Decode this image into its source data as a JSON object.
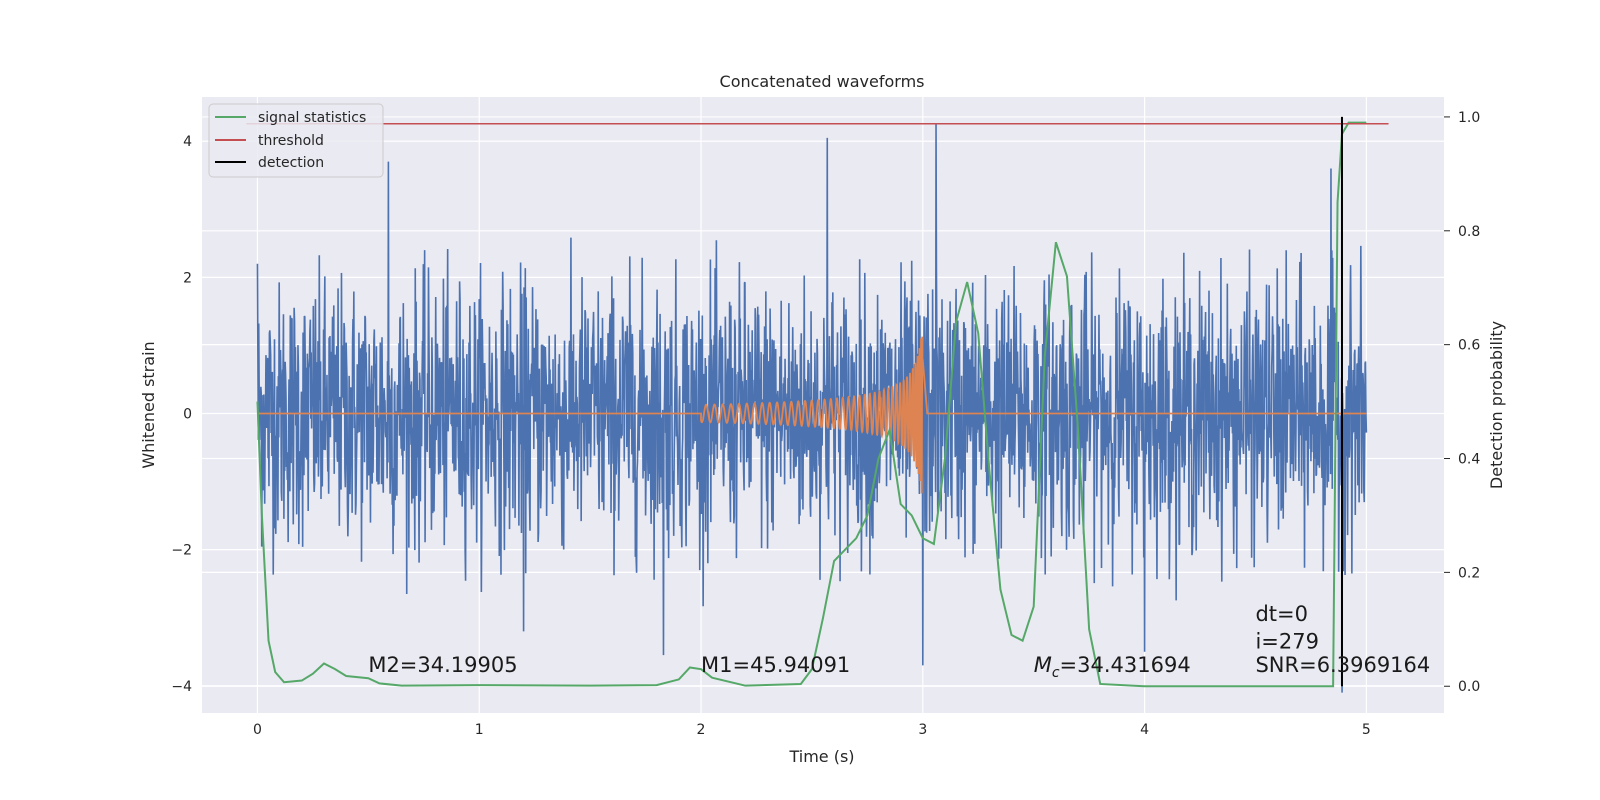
{
  "chart_data": {
    "type": "line",
    "title": "Concatenated waveforms",
    "xlabel": "Time (s)",
    "ylabel": "Whitened strain",
    "y2label": "Detection probability",
    "xlim": [
      -0.25,
      5.35
    ],
    "ylim": [
      -4.4,
      4.65
    ],
    "y2lim": [
      -0.047,
      1.035
    ],
    "xticks": [
      0,
      1,
      2,
      3,
      4,
      5
    ],
    "yticks": [
      -4,
      -2,
      0,
      2,
      4
    ],
    "y2ticks": [
      0.0,
      0.2,
      0.4,
      0.6,
      0.8,
      1.0
    ],
    "grid": true,
    "legend_position": "top-left",
    "background": "#eaeaf2",
    "series": [
      {
        "name": "whitened strain (noise)",
        "color": "#4c72b0",
        "axis": "left",
        "x_range": [
          0,
          5
        ],
        "approx_envelope_abs": 2.3,
        "notable_peaks": [
          [
            0.59,
            3.7
          ],
          [
            2.57,
            4.05
          ],
          [
            3.06,
            4.25
          ],
          [
            0.0,
            2.2
          ],
          [
            4.84,
            3.6
          ],
          [
            4.89,
            -4.1
          ],
          [
            3.0,
            -3.7
          ],
          [
            1.83,
            -3.55
          ],
          [
            4.0,
            -3.5
          ],
          [
            1.2,
            -3.2
          ]
        ]
      },
      {
        "name": "injected waveform",
        "color": "#dd8452",
        "axis": "left",
        "flat_before": 2.0,
        "chirp_start": 2.0,
        "chirp_end": 3.0,
        "peak_amplitude": 1.35,
        "flat_value": 0
      },
      {
        "name": "signal statistics",
        "color": "#55a868",
        "axis": "right",
        "points": [
          [
            0.0,
            0.5
          ],
          [
            0.02,
            0.3
          ],
          [
            0.05,
            0.08
          ],
          [
            0.08,
            0.025
          ],
          [
            0.12,
            0.007
          ],
          [
            0.2,
            0.01
          ],
          [
            0.25,
            0.022
          ],
          [
            0.3,
            0.04
          ],
          [
            0.35,
            0.03
          ],
          [
            0.4,
            0.018
          ],
          [
            0.5,
            0.014
          ],
          [
            0.55,
            0.005
          ],
          [
            0.65,
            0.001
          ],
          [
            1.0,
            0.002
          ],
          [
            1.5,
            0.001
          ],
          [
            1.8,
            0.002
          ],
          [
            1.9,
            0.012
          ],
          [
            1.95,
            0.033
          ],
          [
            2.0,
            0.03
          ],
          [
            2.05,
            0.015
          ],
          [
            2.2,
            0.001
          ],
          [
            2.45,
            0.004
          ],
          [
            2.5,
            0.03
          ],
          [
            2.55,
            0.12
          ],
          [
            2.6,
            0.22
          ],
          [
            2.65,
            0.24
          ],
          [
            2.7,
            0.26
          ],
          [
            2.75,
            0.3
          ],
          [
            2.8,
            0.4
          ],
          [
            2.85,
            0.45
          ],
          [
            2.9,
            0.32
          ],
          [
            2.95,
            0.3
          ],
          [
            3.0,
            0.26
          ],
          [
            3.05,
            0.25
          ],
          [
            3.1,
            0.4
          ],
          [
            3.15,
            0.64
          ],
          [
            3.2,
            0.71
          ],
          [
            3.25,
            0.62
          ],
          [
            3.3,
            0.38
          ],
          [
            3.35,
            0.17
          ],
          [
            3.4,
            0.09
          ],
          [
            3.45,
            0.08
          ],
          [
            3.5,
            0.14
          ],
          [
            3.55,
            0.58
          ],
          [
            3.6,
            0.78
          ],
          [
            3.65,
            0.72
          ],
          [
            3.7,
            0.45
          ],
          [
            3.75,
            0.1
          ],
          [
            3.8,
            0.004
          ],
          [
            4.0,
            0.0
          ],
          [
            4.5,
            0.0
          ],
          [
            4.85,
            0.0
          ],
          [
            4.87,
            0.85
          ],
          [
            4.89,
            0.97
          ],
          [
            4.92,
            0.99
          ],
          [
            5.0,
            0.99
          ]
        ]
      },
      {
        "name": "threshold",
        "color": "#c44e52",
        "axis": "right",
        "x": [
          -0.05,
          5.1
        ],
        "value": 0.988
      },
      {
        "name": "detection",
        "color": "#000000",
        "axis": "right",
        "x": 4.89,
        "y_range": [
          0.0,
          1.0
        ]
      }
    ],
    "legend_entries": [
      {
        "label": "signal statistics",
        "color": "#55a868"
      },
      {
        "label": "threshold",
        "color": "#c44e52"
      },
      {
        "label": "detection",
        "color": "#000000"
      }
    ],
    "annotations": [
      {
        "text": "M2=34.19905",
        "x": 0.5,
        "y": -3.8
      },
      {
        "text": "M1=45.94091",
        "x": 2.0,
        "y": -3.8
      },
      {
        "text": "M_c=34.431694",
        "x": 3.5,
        "y": -3.8
      },
      {
        "text": "SNR=6.3969164",
        "x": 4.5,
        "y": -3.8
      },
      {
        "text": "i=279",
        "x": 4.5,
        "y": -3.45
      },
      {
        "text": "dt=0",
        "x": 4.5,
        "y": -3.05
      }
    ]
  }
}
